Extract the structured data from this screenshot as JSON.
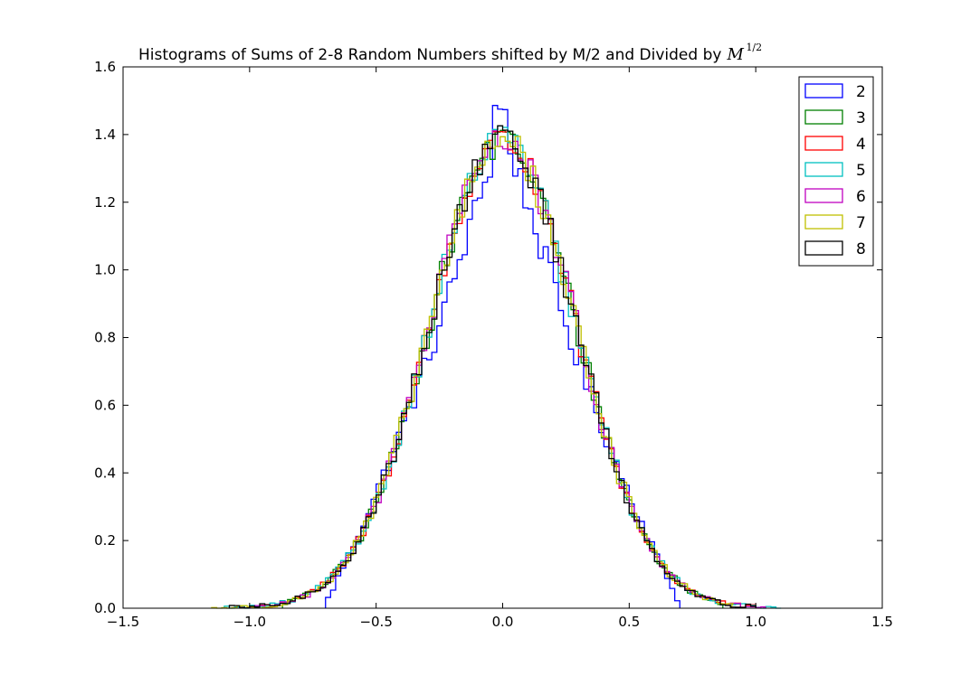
{
  "chart_data": {
    "type": "histogram",
    "title": "Histograms of Sums of 2-8 Random Numbers shifted by M/2 and Divided by",
    "title_math_base": "M",
    "title_math_exponent": "1/2",
    "xlabel": "",
    "ylabel": "",
    "xlim": [
      -1.5,
      1.5
    ],
    "ylim": [
      0.0,
      1.6
    ],
    "xticks": [
      -1.5,
      -1.0,
      -0.5,
      0.0,
      0.5,
      1.0,
      1.5
    ],
    "xtick_labels": [
      "−1.5",
      "−1.0",
      "−0.5",
      "0.0",
      "0.5",
      "1.0",
      "1.5"
    ],
    "yticks": [
      0.0,
      0.2,
      0.4,
      0.6,
      0.8,
      1.0,
      1.2,
      1.4,
      1.6
    ],
    "ytick_labels": [
      "0.0",
      "0.2",
      "0.4",
      "0.6",
      "0.8",
      "1.0",
      "1.2",
      "1.4",
      "1.6"
    ],
    "grid": false,
    "legend_position": "top-right",
    "histtype": "step",
    "distribution_shape": "approximately normal, centered at 0, peak about 1.4",
    "series": [
      {
        "name": "2",
        "color": "#0000ff",
        "x_range": [
          -0.7,
          0.7
        ],
        "peak": 1.5
      },
      {
        "name": "3",
        "color": "#008000",
        "x_range": [
          -0.87,
          0.87
        ],
        "peak": 1.42
      },
      {
        "name": "4",
        "color": "#ff0000",
        "x_range": [
          -1.0,
          1.0
        ],
        "peak": 1.42
      },
      {
        "name": "5",
        "color": "#00bfbf",
        "x_range": [
          -1.1,
          1.1
        ],
        "peak": 1.44
      },
      {
        "name": "6",
        "color": "#bf00bf",
        "x_range": [
          -1.0,
          1.03
        ],
        "peak": 1.38
      },
      {
        "name": "7",
        "color": "#bfbf00",
        "x_range": [
          -1.15,
          0.9
        ],
        "peak": 1.4
      },
      {
        "name": "8",
        "color": "#000000",
        "x_range": [
          -1.08,
          1.0
        ],
        "peak": 1.43
      }
    ]
  }
}
